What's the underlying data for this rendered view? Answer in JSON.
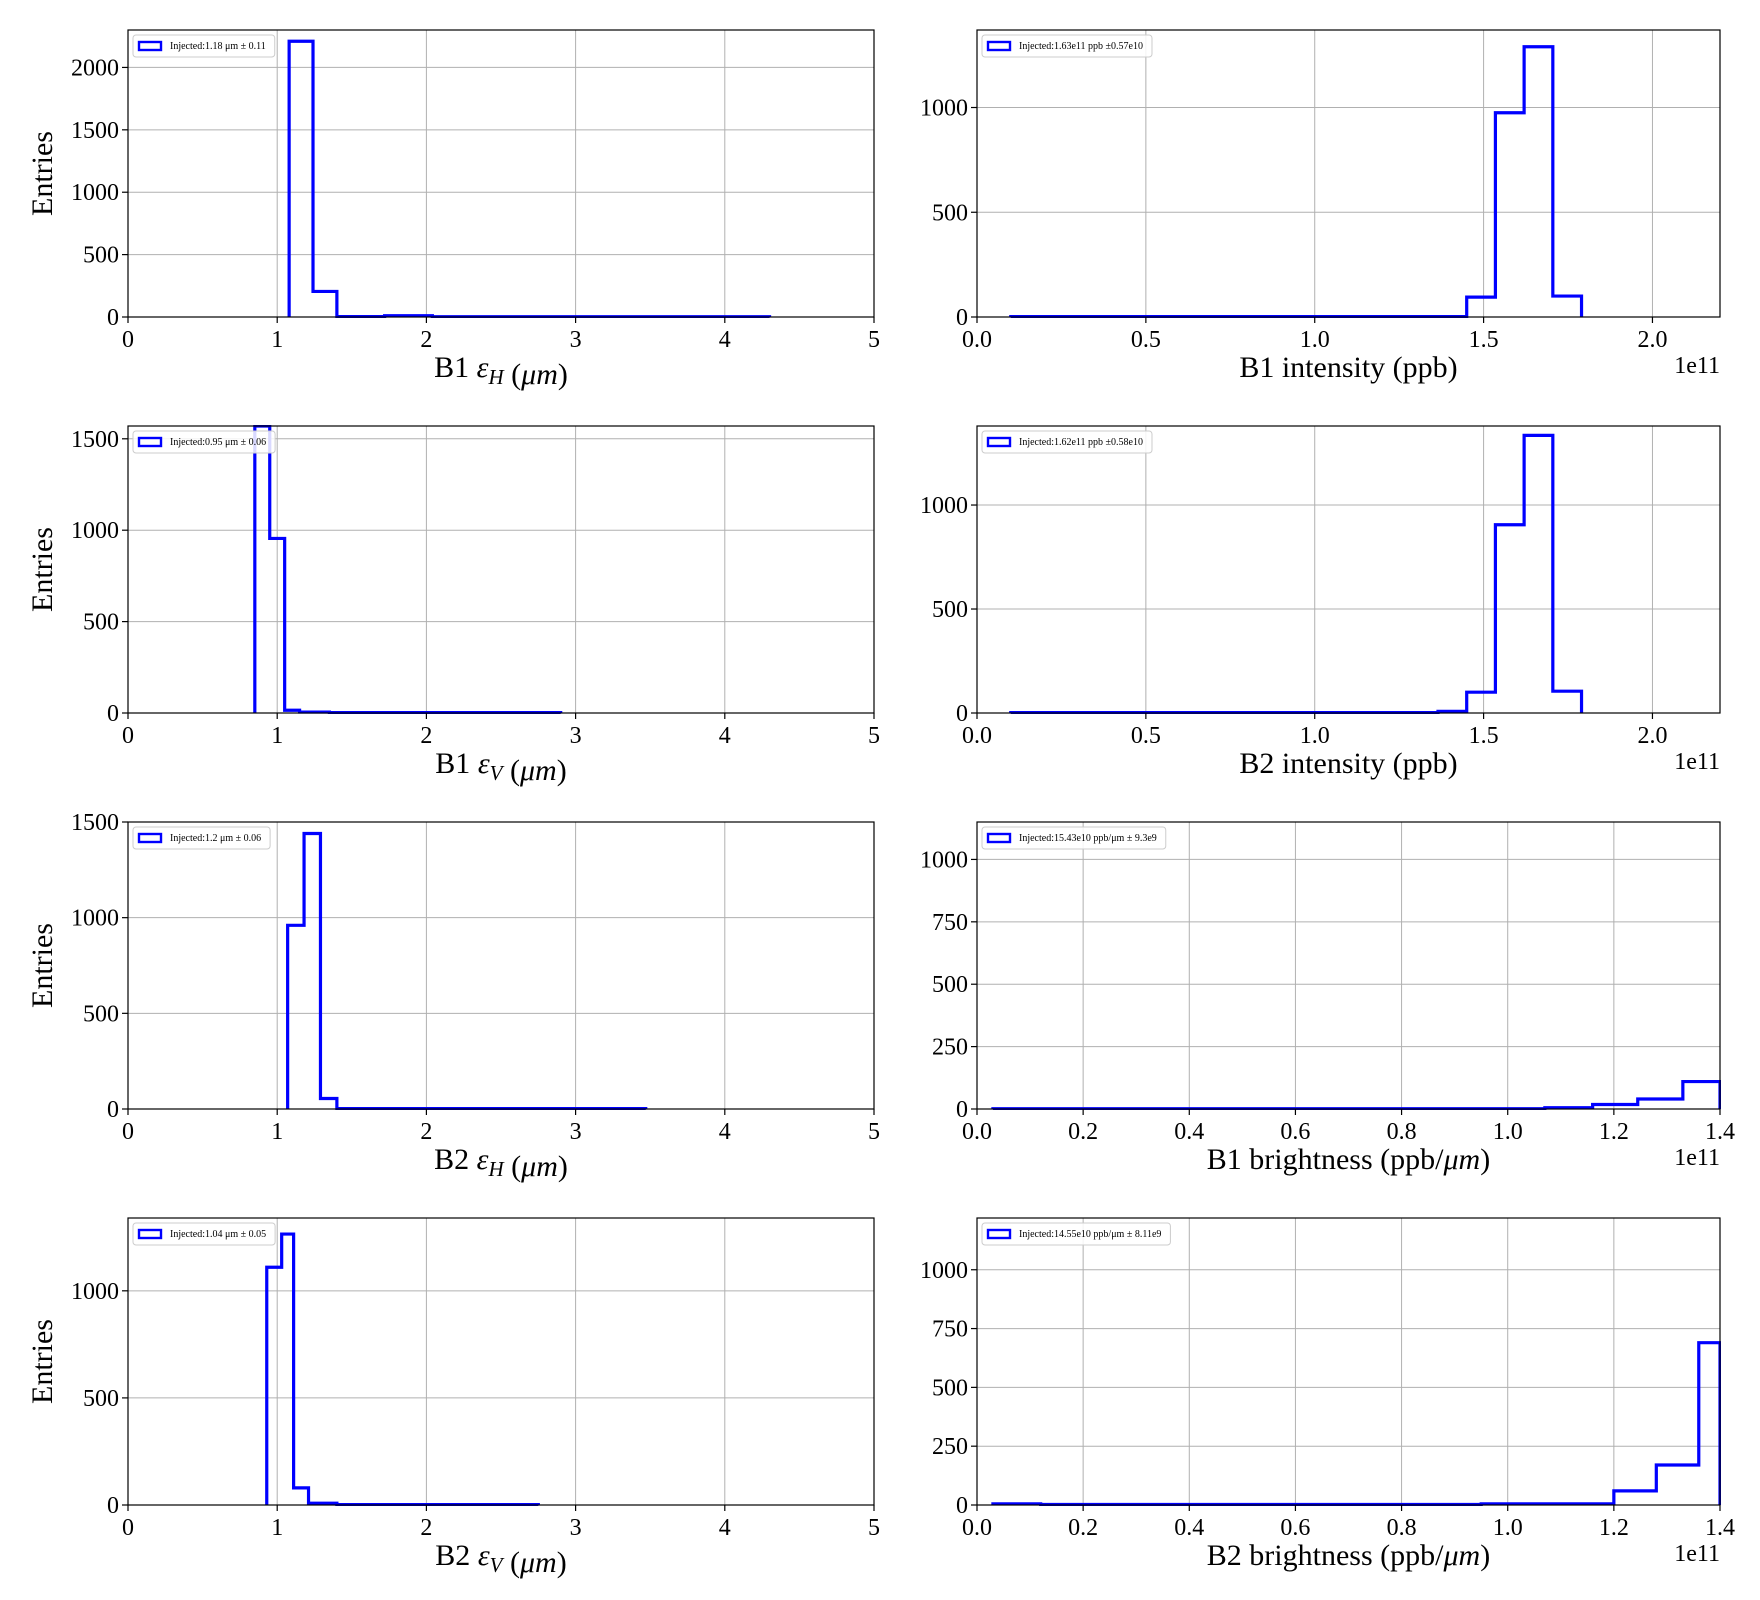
{
  "figure": {
    "colors": {
      "histogram": "#0000ff",
      "grid": "#b0b0b0",
      "axes": "#000000"
    },
    "font": "serif"
  },
  "chart_data": [
    {
      "type": "histogram",
      "row": 0,
      "col": 0,
      "xlabel_main": "B1 ",
      "xlabel_symbol": "ε",
      "xlabel_sub": "H",
      "xlabel_unit": " (μm)",
      "ylabel": "Entries",
      "xlim": [
        0,
        5
      ],
      "ylim": [
        0,
        2300
      ],
      "xticks": [
        0,
        1,
        2,
        3,
        4,
        5
      ],
      "xtick_labels": [
        "0",
        "1",
        "2",
        "3",
        "4",
        "5"
      ],
      "yticks": [
        0,
        500,
        1000,
        1500,
        2000
      ],
      "ytick_labels": [
        "0",
        "500",
        "1000",
        "1500",
        "2000"
      ],
      "offset_text": "",
      "legend": "Injected:1.18 μm ± 0.11",
      "legend_loc": "upper left",
      "bins": [
        1.08,
        1.24,
        1.4,
        1.56,
        1.72,
        1.88,
        2.04,
        4.3
      ],
      "counts": [
        2210,
        205,
        3,
        3,
        10,
        10,
        2
      ]
    },
    {
      "type": "histogram",
      "row": 0,
      "col": 1,
      "xlabel_main": "B1 intensity (ppb)",
      "ylabel": "",
      "xlim": [
        0.0,
        2.2
      ],
      "ylim": [
        0,
        1370
      ],
      "xticks": [
        0.0,
        0.5,
        1.0,
        1.5,
        2.0
      ],
      "xtick_labels": [
        "0.0",
        "0.5",
        "1.0",
        "1.5",
        "2.0"
      ],
      "yticks": [
        0,
        500,
        1000
      ],
      "ytick_labels": [
        "0",
        "500",
        "1000"
      ],
      "offset_text": "1e11",
      "legend": "Injected:1.63e11 ppb ±0.57e10",
      "legend_loc": "upper left",
      "bins": [
        0.1,
        1.45,
        1.535,
        1.62,
        1.705,
        1.79
      ],
      "counts": [
        2,
        95,
        975,
        1290,
        100
      ]
    },
    {
      "type": "histogram",
      "row": 1,
      "col": 0,
      "xlabel_main": "B1 ",
      "xlabel_symbol": "ε",
      "xlabel_sub": "V",
      "xlabel_unit": " (μm)",
      "ylabel": "Entries",
      "xlim": [
        0,
        5
      ],
      "ylim": [
        0,
        1570
      ],
      "xticks": [
        0,
        1,
        2,
        3,
        4,
        5
      ],
      "xtick_labels": [
        "0",
        "1",
        "2",
        "3",
        "4",
        "5"
      ],
      "yticks": [
        0,
        500,
        1000,
        1500
      ],
      "ytick_labels": [
        "0",
        "500",
        "1000",
        "1500"
      ],
      "offset_text": "",
      "legend": "Injected:0.95 μm ± 0.06",
      "legend_loc": "upper left",
      "bins": [
        0.85,
        0.95,
        1.05,
        1.15,
        1.35,
        2.9
      ],
      "counts": [
        1570,
        955,
        15,
        5,
        2
      ]
    },
    {
      "type": "histogram",
      "row": 1,
      "col": 1,
      "xlabel_main": "B2 intensity (ppb)",
      "ylabel": "",
      "xlim": [
        0.0,
        2.2
      ],
      "ylim": [
        0,
        1380
      ],
      "xticks": [
        0.0,
        0.5,
        1.0,
        1.5,
        2.0
      ],
      "xtick_labels": [
        "0.0",
        "0.5",
        "1.0",
        "1.5",
        "2.0"
      ],
      "yticks": [
        0,
        500,
        1000
      ],
      "ytick_labels": [
        "0",
        "500",
        "1000"
      ],
      "offset_text": "1e11",
      "legend": "Injected:1.62e11 ppb ±0.58e10",
      "legend_loc": "upper left",
      "bins": [
        0.1,
        1.365,
        1.45,
        1.535,
        1.62,
        1.705,
        1.79
      ],
      "counts": [
        2,
        8,
        100,
        905,
        1335,
        105
      ]
    },
    {
      "type": "histogram",
      "row": 2,
      "col": 0,
      "xlabel_main": "B2 ",
      "xlabel_symbol": "ε",
      "xlabel_sub": "H",
      "xlabel_unit": " (μm)",
      "ylabel": "Entries",
      "xlim": [
        0,
        5
      ],
      "ylim": [
        0,
        1500
      ],
      "xticks": [
        0,
        1,
        2,
        3,
        4,
        5
      ],
      "xtick_labels": [
        "0",
        "1",
        "2",
        "3",
        "4",
        "5"
      ],
      "yticks": [
        0,
        500,
        1000,
        1500
      ],
      "ytick_labels": [
        "0",
        "500",
        "1000",
        "1500"
      ],
      "offset_text": "",
      "legend": "Injected:1.2 μm ± 0.06",
      "legend_loc": "upper left",
      "bins": [
        1.07,
        1.18,
        1.29,
        1.4,
        3.47
      ],
      "counts": [
        960,
        1440,
        55,
        2
      ]
    },
    {
      "type": "histogram",
      "row": 2,
      "col": 1,
      "xlabel_main": "B1 brightness (ppb/",
      "xlabel_unit_italic": "μm",
      "xlabel_close": ")",
      "ylabel": "",
      "xlim": [
        0.0,
        1.4
      ],
      "ylim": [
        0,
        1150
      ],
      "xticks": [
        0.0,
        0.2,
        0.4,
        0.6,
        0.8,
        1.0,
        1.2,
        1.4
      ],
      "xtick_labels": [
        "0.0",
        "0.2",
        "0.4",
        "0.6",
        "0.8",
        "1.0",
        "1.2",
        "1.4"
      ],
      "yticks": [
        0,
        250,
        500,
        750,
        1000
      ],
      "ytick_labels": [
        "0",
        "250",
        "500",
        "750",
        "1000"
      ],
      "offset_text": "1e11",
      "legend": "Injected:15.43e10 ppb/μm ± 9.3e9",
      "legend_loc": "upper left",
      "bins": [
        0.03,
        1.07,
        1.16,
        1.245,
        1.33,
        1.4
      ],
      "counts": [
        1,
        5,
        18,
        40,
        110
      ]
    },
    {
      "type": "histogram",
      "row": 3,
      "col": 0,
      "xlabel_main": "B2 ",
      "xlabel_symbol": "ε",
      "xlabel_sub": "V",
      "xlabel_unit": " (μm)",
      "ylabel": "Entries",
      "xlim": [
        0,
        5
      ],
      "ylim": [
        0,
        1340
      ],
      "xticks": [
        0,
        1,
        2,
        3,
        4,
        5
      ],
      "xtick_labels": [
        "0",
        "1",
        "2",
        "3",
        "4",
        "5"
      ],
      "yticks": [
        0,
        500,
        1000
      ],
      "ytick_labels": [
        "0",
        "500",
        "1000"
      ],
      "offset_text": "",
      "legend": "Injected:1.04 μm ± 0.05",
      "legend_loc": "upper left",
      "bins": [
        0.93,
        1.03,
        1.11,
        1.21,
        1.4,
        2.75
      ],
      "counts": [
        1110,
        1265,
        80,
        8,
        2
      ]
    },
    {
      "type": "histogram",
      "row": 3,
      "col": 1,
      "xlabel_main": "B2 brightness (ppb/",
      "xlabel_unit_italic": "μm",
      "xlabel_close": ")",
      "ylabel": "",
      "xlim": [
        0.0,
        1.4
      ],
      "ylim": [
        0,
        1220
      ],
      "xticks": [
        0.0,
        0.2,
        0.4,
        0.6,
        0.8,
        1.0,
        1.2,
        1.4
      ],
      "xtick_labels": [
        "0.0",
        "0.2",
        "0.4",
        "0.6",
        "0.8",
        "1.0",
        "1.2",
        "1.4"
      ],
      "yticks": [
        0,
        250,
        500,
        750,
        1000
      ],
      "ytick_labels": [
        "0",
        "250",
        "500",
        "750",
        "1000"
      ],
      "offset_text": "1e11",
      "legend": "Injected:14.55e10 ppb/μm ± 8.11e9",
      "legend_loc": "upper left",
      "bins": [
        0.03,
        0.12,
        0.95,
        1.2,
        1.28,
        1.36,
        1.4
      ],
      "counts": [
        5,
        2,
        5,
        60,
        170,
        690
      ]
    }
  ]
}
